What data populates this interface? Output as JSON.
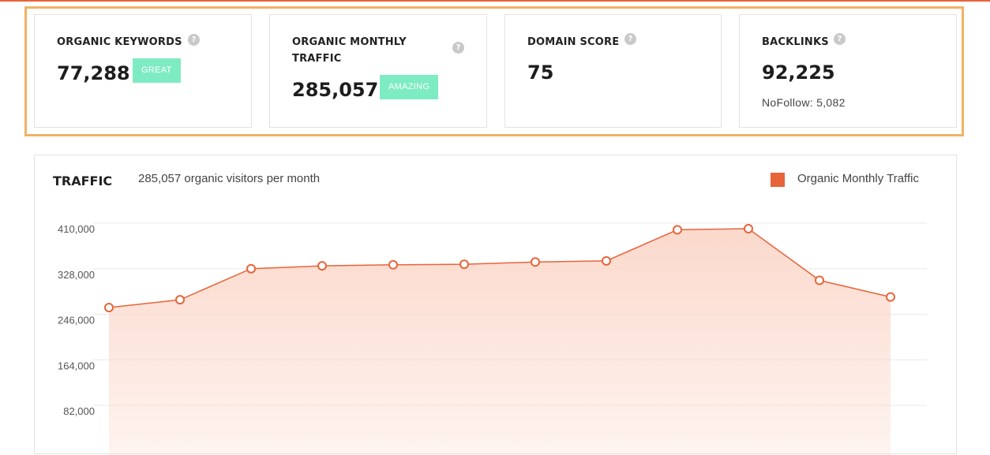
{
  "metrics": [
    {
      "title": "ORGANIC KEYWORDS",
      "value": "77,288",
      "badge": "GREAT",
      "help": "?"
    },
    {
      "title_line1": "ORGANIC MONTHLY",
      "title_line2": "TRAFFIC",
      "value": "285,057",
      "badge": "AMAZING",
      "help": "?"
    },
    {
      "title": "DOMAIN SCORE",
      "value": "75",
      "help": "?"
    },
    {
      "title": "BACKLINKS",
      "value": "92,225",
      "sub": "NoFollow: 5,082",
      "help": "?"
    }
  ],
  "traffic": {
    "title": "TRAFFIC",
    "subtitle": "285,057 organic visitors per month",
    "legend_label": "Organic Monthly Traffic"
  },
  "colors": {
    "accent": "#e8643a",
    "highlight_border": "#f0b266",
    "badge_bg": "#7eecc3",
    "area_fill": "#fbd9cc"
  },
  "chart_data": {
    "type": "area",
    "series": [
      {
        "name": "Organic Monthly Traffic",
        "values": [
          268000,
          282000,
          338000,
          343000,
          345000,
          346000,
          350000,
          352000,
          408000,
          410000,
          317000,
          287000
        ]
      }
    ],
    "y_ticks": [
      "410,000",
      "328,000",
      "246,000",
      "164,000",
      "82,000"
    ],
    "y_tick_values": [
      410000,
      328000,
      246000,
      164000,
      82000
    ],
    "ylim": [
      0,
      410000
    ],
    "grid": true,
    "legend_position": "top-right"
  }
}
